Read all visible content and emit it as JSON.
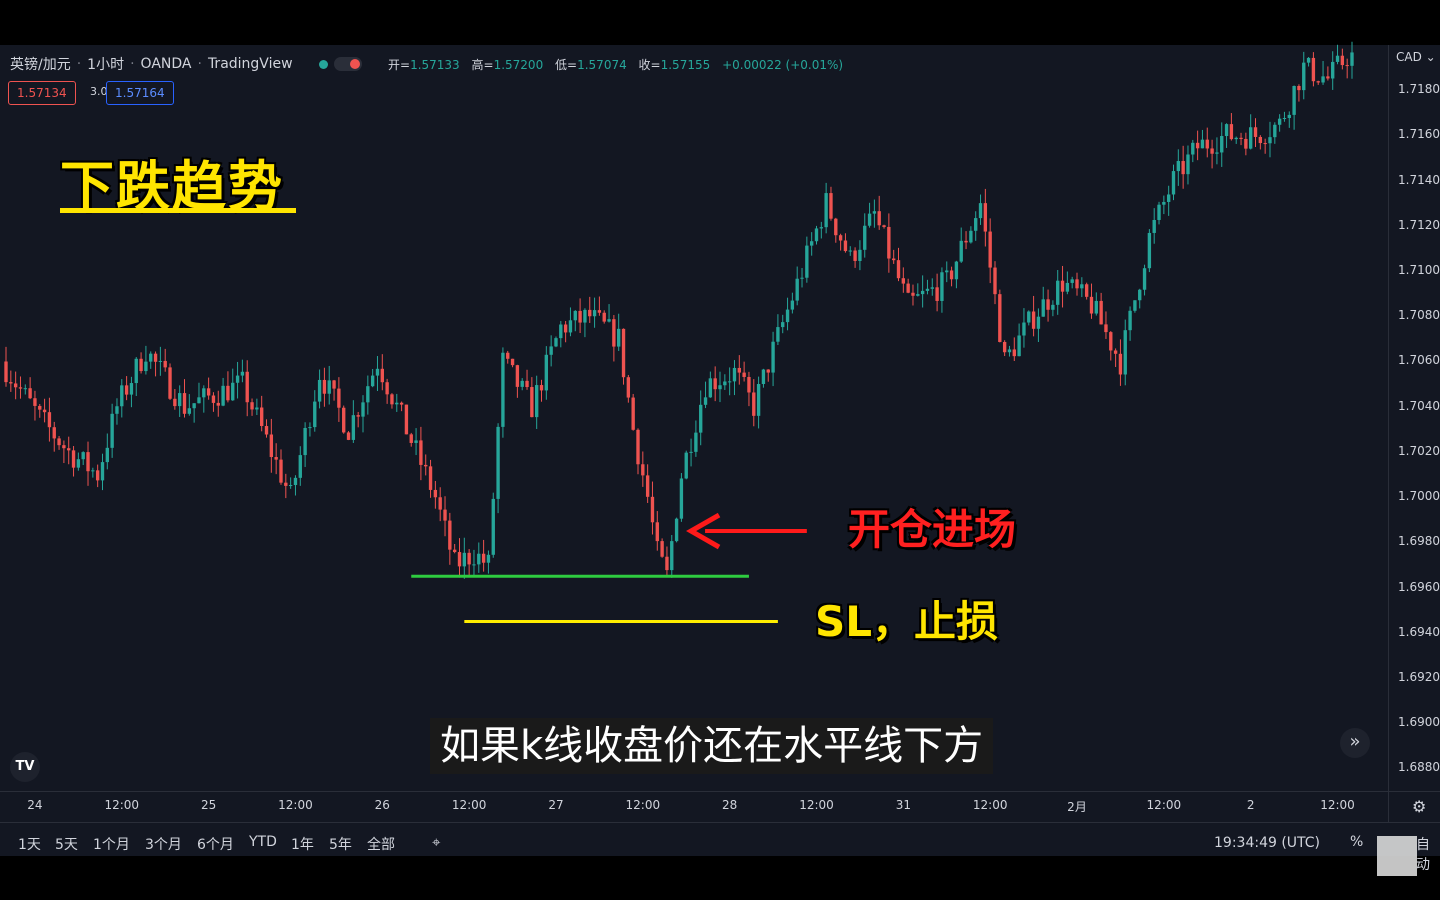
{
  "header": {
    "symbol": "英镑/加元",
    "interval": "1小时",
    "broker": "OANDA",
    "platform": "TradingView",
    "ohlc": [
      {
        "label": "开=",
        "value": "1.57133"
      },
      {
        "label": "高=",
        "value": "1.57200"
      },
      {
        "label": "低=",
        "value": "1.57074"
      },
      {
        "label": "收=",
        "value": "1.57155"
      }
    ],
    "change": "+0.00022 (+0.01%)",
    "sell_price": "1.57134",
    "spread": "3.0",
    "buy_price": "1.57164"
  },
  "annotations": {
    "headline": "下跌趋势",
    "entry_label": "开仓进场",
    "sl_label": "SL，止损",
    "subtitle": "如果k线收盘价还在水平线下方"
  },
  "price_axis": {
    "currency": "CAD",
    "currency_arrow": "⌄",
    "ticks": [
      "1.71800",
      "1.71600",
      "1.71400",
      "1.71200",
      "1.71000",
      "1.70800",
      "1.70600",
      "1.70400",
      "1.70200",
      "1.70000",
      "1.69800",
      "1.69600",
      "1.69400",
      "1.69200",
      "1.69000",
      "1.68800"
    ]
  },
  "time_axis": {
    "ticks": [
      "24",
      "12:00",
      "25",
      "12:00",
      "26",
      "12:00",
      "27",
      "12:00",
      "28",
      "12:00",
      "31",
      "12:00",
      "2月",
      "12:00",
      "2",
      "12:00"
    ]
  },
  "bottom_bar": {
    "ranges": [
      "1天",
      "5天",
      "1个月",
      "3个月",
      "6个月",
      "YTD",
      "1年",
      "5年",
      "全部"
    ],
    "clock": "19:34:49 (UTC)",
    "percent": "%",
    "auto": "自动"
  },
  "icons": {
    "logo": "TV",
    "goto_realtime": "»",
    "settings": "⚙",
    "compare": "⌖"
  },
  "colors": {
    "up": "#26a69a",
    "down": "#ef5350",
    "background": "#131722",
    "entry_line": "#2ecc40",
    "sl_line": "#ffee00",
    "arrow": "#ff1a1a",
    "headline": "#ffe500"
  },
  "chart_data": {
    "type": "candlestick",
    "title": "",
    "xlabel": "",
    "ylabel": "",
    "ylim": [
      1.687,
      1.72
    ],
    "price_ticks": [
      1.718,
      1.716,
      1.714,
      1.712,
      1.71,
      1.708,
      1.706,
      1.704,
      1.702,
      1.7,
      1.698,
      1.696,
      1.694,
      1.692,
      1.69,
      1.688
    ],
    "time_ticks": [
      {
        "label": "24",
        "index": 6
      },
      {
        "label": "12:00",
        "index": 24
      },
      {
        "label": "25",
        "index": 42
      },
      {
        "label": "12:00",
        "index": 60
      },
      {
        "label": "26",
        "index": 78
      },
      {
        "label": "12:00",
        "index": 96
      },
      {
        "label": "27",
        "index": 114
      },
      {
        "label": "12:00",
        "index": 132
      },
      {
        "label": "28",
        "index": 150
      },
      {
        "label": "12:00",
        "index": 168
      },
      {
        "label": "31",
        "index": 186
      },
      {
        "label": "12:00",
        "index": 204
      },
      {
        "label": "2月",
        "index": 222
      },
      {
        "label": "12:00",
        "index": 240
      },
      {
        "label": "2",
        "index": 258
      },
      {
        "label": "12:00",
        "index": 276
      }
    ],
    "candle_count": 280,
    "anchors": [
      [
        0,
        1.706
      ],
      [
        8,
        1.7035
      ],
      [
        14,
        1.702
      ],
      [
        20,
        1.701
      ],
      [
        24,
        1.704
      ],
      [
        30,
        1.7065
      ],
      [
        38,
        1.704
      ],
      [
        44,
        1.7045
      ],
      [
        50,
        1.705
      ],
      [
        56,
        1.702
      ],
      [
        60,
        1.7
      ],
      [
        66,
        1.7055
      ],
      [
        72,
        1.703
      ],
      [
        78,
        1.706
      ],
      [
        84,
        1.703
      ],
      [
        90,
        1.7
      ],
      [
        94,
        1.697
      ],
      [
        98,
        1.6975
      ],
      [
        101,
        1.697
      ],
      [
        104,
        1.706
      ],
      [
        110,
        1.704
      ],
      [
        116,
        1.7075
      ],
      [
        122,
        1.708
      ],
      [
        128,
        1.707
      ],
      [
        131,
        1.703
      ],
      [
        134,
        1.7
      ],
      [
        136,
        1.6975
      ],
      [
        138,
        1.6965
      ],
      [
        141,
        1.701
      ],
      [
        146,
        1.705
      ],
      [
        152,
        1.7055
      ],
      [
        156,
        1.704
      ],
      [
        160,
        1.7065
      ],
      [
        166,
        1.71
      ],
      [
        171,
        1.713
      ],
      [
        176,
        1.7105
      ],
      [
        181,
        1.7125
      ],
      [
        188,
        1.7085
      ],
      [
        196,
        1.7095
      ],
      [
        203,
        1.713
      ],
      [
        208,
        1.706
      ],
      [
        214,
        1.708
      ],
      [
        220,
        1.7095
      ],
      [
        226,
        1.7085
      ],
      [
        232,
        1.706
      ],
      [
        238,
        1.7115
      ],
      [
        243,
        1.714
      ],
      [
        248,
        1.7155
      ],
      [
        254,
        1.716
      ],
      [
        260,
        1.716
      ],
      [
        265,
        1.7165
      ],
      [
        270,
        1.719
      ],
      [
        275,
        1.7185
      ],
      [
        279,
        1.7195
      ]
    ],
    "levels": {
      "entry_line": {
        "price": 1.6965,
        "from_index": 84,
        "to_index": 154
      },
      "stop_loss_line": {
        "price": 1.6945,
        "from_index": 95,
        "to_index": 160
      }
    },
    "arrow": {
      "price": 1.6985,
      "from_index": 166,
      "to_index": 142
    }
  }
}
